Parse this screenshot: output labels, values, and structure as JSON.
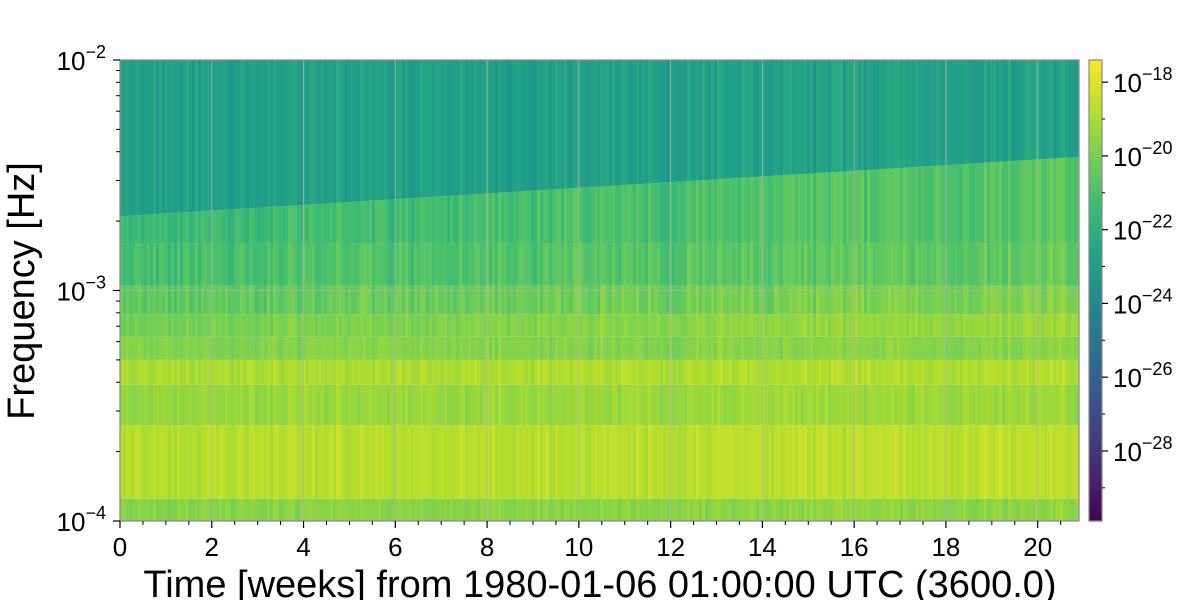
{
  "chart_data": {
    "type": "heatmap",
    "title": "",
    "xlabel": "Time [weeks] from 1980-01-06 01:00:00 UTC (3600.0)",
    "ylabel": "Frequency [Hz]",
    "x_range": [
      0,
      20.9
    ],
    "y_range": [
      0.0001,
      0.01
    ],
    "y_scale": "log",
    "grid": true,
    "x_ticks": [
      {
        "value": 0,
        "label": "0"
      },
      {
        "value": 2,
        "label": "2"
      },
      {
        "value": 4,
        "label": "4"
      },
      {
        "value": 6,
        "label": "6"
      },
      {
        "value": 8,
        "label": "8"
      },
      {
        "value": 10,
        "label": "10"
      },
      {
        "value": 12,
        "label": "12"
      },
      {
        "value": 14,
        "label": "14"
      },
      {
        "value": 16,
        "label": "16"
      },
      {
        "value": 18,
        "label": "18"
      },
      {
        "value": 20,
        "label": "20"
      }
    ],
    "y_ticks": [
      {
        "value": 0.0001,
        "base": "10",
        "exp": "−4"
      },
      {
        "value": 0.001,
        "base": "10",
        "exp": "−3"
      },
      {
        "value": 0.01,
        "base": "10",
        "exp": "−2"
      }
    ],
    "colormap": "viridis",
    "colorbar": {
      "scale": "log",
      "range_exp": [
        -29.9,
        -17.4
      ],
      "ticks": [
        {
          "exp_value": -18,
          "base": "10",
          "exp": "−18"
        },
        {
          "exp_value": -20,
          "base": "10",
          "exp": "−20"
        },
        {
          "exp_value": -22,
          "base": "10",
          "exp": "−22"
        },
        {
          "exp_value": -24,
          "base": "10",
          "exp": "−24"
        },
        {
          "exp_value": -26,
          "base": "10",
          "exp": "−26"
        },
        {
          "exp_value": -28,
          "base": "10",
          "exp": "−28"
        }
      ]
    },
    "bands": [
      {
        "f_low": 0.0001,
        "f_high": 0.000125,
        "log_value": -19.7
      },
      {
        "f_low": 0.000125,
        "f_high": 0.00026,
        "log_value": -18.8
      },
      {
        "f_low": 0.00026,
        "f_high": 0.00039,
        "log_value": -19.4
      },
      {
        "f_low": 0.00039,
        "f_high": 0.0005,
        "log_value": -19.0
      },
      {
        "f_low": 0.0005,
        "f_high": 0.00063,
        "log_value": -19.8
      },
      {
        "f_low": 0.00063,
        "f_high": 0.00079,
        "log_value": -20.1
      },
      {
        "f_low": 0.00079,
        "f_high": 0.00105,
        "log_value": -20.6
      },
      {
        "f_low": 0.00105,
        "f_high": 0.0016,
        "log_value": -21.2
      },
      {
        "f_low": 0.0016,
        "f_high": "boundary",
        "log_value": -21.5
      },
      {
        "f_low": "boundary",
        "f_high": 0.01,
        "log_value": -22.9
      }
    ],
    "boundary_frequency": {
      "x": [
        0,
        20.9
      ],
      "y": [
        0.0021,
        0.0038
      ]
    }
  }
}
